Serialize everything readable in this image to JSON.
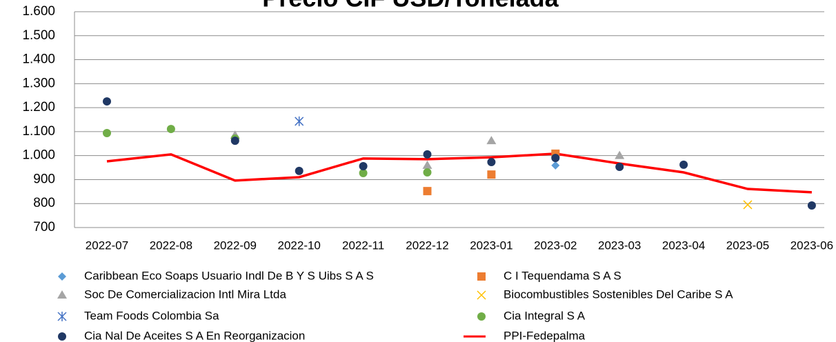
{
  "chart_data": {
    "type": "scatter-line",
    "title": "Precio CIF USD/Tonelada",
    "categories": [
      "2022-07",
      "2022-08",
      "2022-09",
      "2022-10",
      "2022-11",
      "2022-12",
      "2023-01",
      "2023-02",
      "2023-03",
      "2023-04",
      "2023-05",
      "2023-06"
    ],
    "ylim": [
      700,
      1600
    ],
    "yticks": [
      {
        "value": 1600,
        "label": "1.600"
      },
      {
        "value": 1500,
        "label": "1.500"
      },
      {
        "value": 1400,
        "label": "1.400"
      },
      {
        "value": 1300,
        "label": "1.300"
      },
      {
        "value": 1200,
        "label": "1.200"
      },
      {
        "value": 1100,
        "label": "1.100"
      },
      {
        "value": 1000,
        "label": "1.000"
      },
      900,
      800,
      700
    ],
    "grid": true,
    "legend": "bottom",
    "series": [
      {
        "name": "Caribbean Eco Soaps Usuario Indl De B Y S Uibs S A S",
        "color": "#5b9bd5",
        "marker": "diamond",
        "values": [
          null,
          null,
          null,
          null,
          null,
          null,
          null,
          959,
          null,
          null,
          null,
          null
        ]
      },
      {
        "name": "C I Tequendama S A S",
        "color": "#ed7d31",
        "marker": "square",
        "values": [
          null,
          null,
          null,
          null,
          null,
          852,
          921,
          1008,
          null,
          null,
          null,
          null
        ]
      },
      {
        "name": "Soc De Comercializacion Intl Mira Ltda",
        "color": "#a5a5a5",
        "marker": "triangle",
        "values": [
          null,
          null,
          1085,
          null,
          null,
          959,
          1062,
          null,
          1000,
          null,
          null,
          null
        ]
      },
      {
        "name": "Biocombustibles Sostenibles Del Caribe S A",
        "color": "#ffc000",
        "marker": "x",
        "values": [
          null,
          null,
          null,
          null,
          null,
          null,
          null,
          null,
          null,
          null,
          795,
          null
        ]
      },
      {
        "name": "Team Foods Colombia Sa",
        "color": "#4472c4",
        "marker": "star",
        "values": [
          null,
          null,
          null,
          1143,
          null,
          null,
          null,
          null,
          null,
          null,
          null,
          null
        ]
      },
      {
        "name": "Cia Integral S A",
        "color": "#70ad47",
        "marker": "circle",
        "values": [
          1094,
          1111,
          1071,
          null,
          927,
          930,
          null,
          null,
          null,
          null,
          null,
          null
        ]
      },
      {
        "name": "Cia Nal De Aceites S A En Reorganizacion",
        "color": "#203864",
        "marker": "circle",
        "values": [
          1226,
          null,
          1062,
          936,
          956,
          1005,
          973,
          990,
          953,
          962,
          null,
          792
        ]
      },
      {
        "name": "PPI-Fedepalma",
        "color": "#ff0000",
        "marker": "line",
        "values": [
          976,
          1005,
          896,
          910,
          988,
          985,
          993,
          1008,
          967,
          930,
          861,
          847
        ]
      }
    ]
  }
}
